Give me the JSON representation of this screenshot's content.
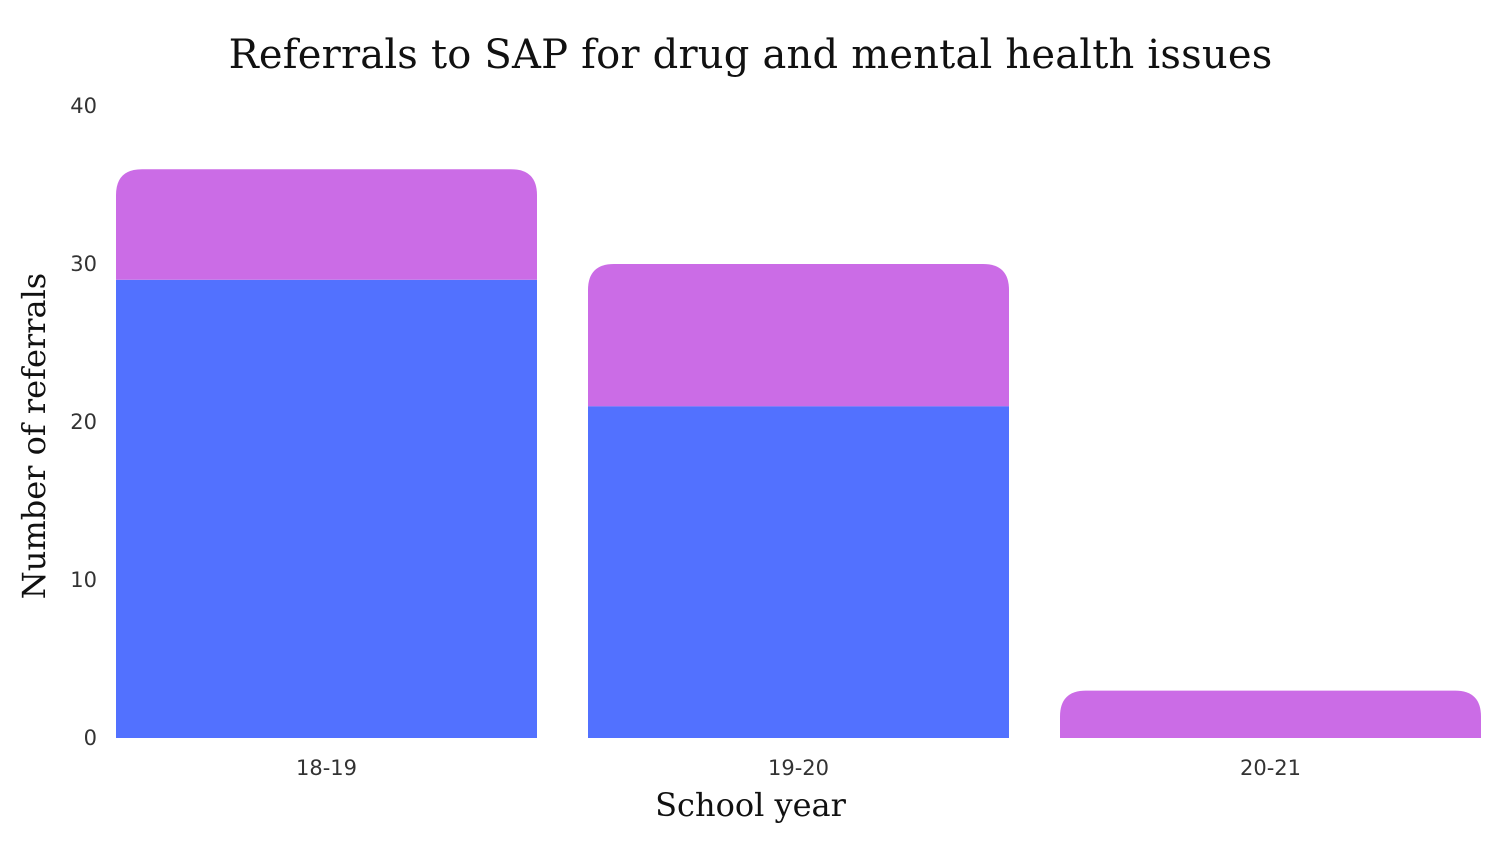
{
  "chart_data": {
    "type": "bar",
    "stacked": true,
    "title": "Referrals to SAP for drug and mental health issues",
    "xlabel": "School year",
    "ylabel": "Number of referrals",
    "categories": [
      "18-19",
      "19-20",
      "20-21"
    ],
    "ylim": [
      0,
      40
    ],
    "yticks": [
      0,
      10,
      20,
      30,
      40
    ],
    "grid": false,
    "legend": "none",
    "series": [
      {
        "values": [
          29,
          21,
          0
        ],
        "color": "#5271ff"
      },
      {
        "values": [
          7,
          9,
          3
        ],
        "color": "#cb6ce6"
      }
    ]
  }
}
